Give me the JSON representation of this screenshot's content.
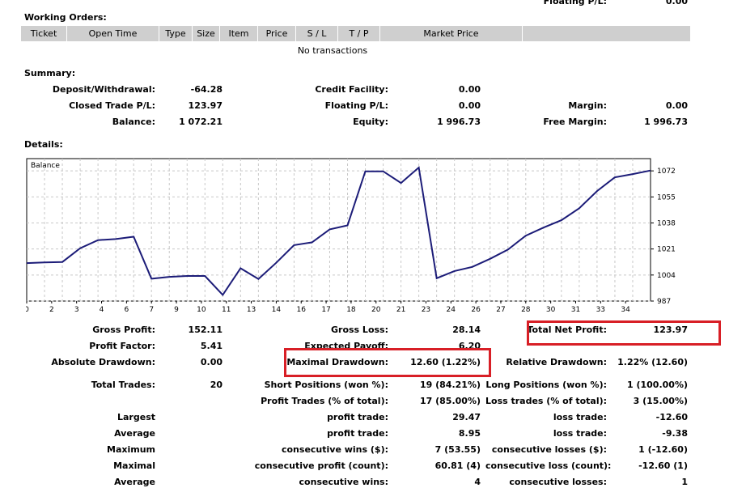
{
  "top_right": {
    "label": "Floating P/L:",
    "value": "0.00"
  },
  "working_orders": {
    "title": "Working Orders:",
    "columns": [
      "Ticket",
      "Open Time",
      "Type",
      "Size",
      "Item",
      "Price",
      "S / L",
      "T / P",
      "Market Price",
      ""
    ],
    "empty_text": "No transactions"
  },
  "summary": {
    "title": "Summary:",
    "deposit_label": "Deposit/Withdrawal:",
    "deposit_value": "-64.28",
    "credit_label": "Credit Facility:",
    "credit_value": "0.00",
    "closed_label": "Closed Trade P/L:",
    "closed_value": "123.97",
    "floating_label": "Floating P/L:",
    "floating_value": "0.00",
    "margin_label": "Margin:",
    "margin_value": "0.00",
    "balance_label": "Balance:",
    "balance_value": "1 072.21",
    "equity_label": "Equity:",
    "equity_value": "1 996.73",
    "free_margin_label": "Free Margin:",
    "free_margin_value": "1 996.73"
  },
  "details": {
    "title": "Details:",
    "gross_profit_label": "Gross Profit:",
    "gross_profit_value": "152.11",
    "gross_loss_label": "Gross Loss:",
    "gross_loss_value": "28.14",
    "total_net_label": "Total Net Profit:",
    "total_net_value": "123.97",
    "profit_factor_label": "Profit Factor:",
    "profit_factor_value": "5.41",
    "expected_payoff_label": "Expected Payoff:",
    "expected_payoff_value": "6.20",
    "abs_dd_label": "Absolute Drawdown:",
    "abs_dd_value": "0.00",
    "max_dd_label": "Maximal Drawdown:",
    "max_dd_value": "12.60 (1.22%)",
    "rel_dd_label": "Relative Drawdown:",
    "rel_dd_value": "1.22% (12.60)",
    "total_trades_label": "Total Trades:",
    "total_trades_value": "20",
    "short_label": "Short Positions (won %):",
    "short_value": "19 (84.21%)",
    "long_label": "Long Positions (won %):",
    "long_value": "1 (100.00%)",
    "profit_trades_label": "Profit Trades (% of total):",
    "profit_trades_value": "17 (85.00%)",
    "loss_trades_label": "Loss trades (% of total):",
    "loss_trades_value": "3 (15.00%)",
    "largest_label": "Largest",
    "largest_profit_label": "profit trade:",
    "largest_profit_value": "29.47",
    "largest_loss_label": "loss trade:",
    "largest_loss_value": "-12.60",
    "average_label": "Average",
    "average_profit_label": "profit trade:",
    "average_profit_value": "8.95",
    "average_loss_label": "loss trade:",
    "average_loss_value": "-9.38",
    "maximum_label": "Maximum",
    "max_cons_wins_label": "consecutive wins ($):",
    "max_cons_wins_value": "7 (53.55)",
    "max_cons_losses_label": "consecutive losses ($):",
    "max_cons_losses_value": "1 (-12.60)",
    "maximal_label": "Maximal",
    "maximal_profit_label": "consecutive profit (count):",
    "maximal_profit_value": "60.81 (4)",
    "maximal_loss_label": "consecutive loss (count):",
    "maximal_loss_value": "-12.60 (1)",
    "average2_label": "Average",
    "avg_cons_wins_label": "consecutive wins:",
    "avg_cons_wins_value": "4",
    "avg_cons_losses_label": "consecutive losses:",
    "avg_cons_losses_value": "1"
  },
  "colors": {
    "line": "#1c1c78",
    "highlight": "#d81f26",
    "header_bg": "#cfcfcf"
  },
  "chart_data": {
    "type": "line",
    "title": "Balance",
    "x_ticks": [
      0,
      2,
      3,
      4,
      6,
      7,
      9,
      10,
      11,
      13,
      14,
      16,
      17,
      18,
      20,
      21,
      23,
      24,
      26,
      27,
      28,
      30,
      31,
      33,
      34
    ],
    "y_ticks": [
      987,
      1004,
      1021,
      1038,
      1055,
      1072
    ],
    "ylim": [
      987,
      1080
    ],
    "grid": true,
    "series": [
      {
        "x": [
          0,
          1,
          2,
          3,
          4,
          5,
          6,
          7,
          8,
          9,
          10,
          11,
          12,
          13,
          14,
          15,
          16,
          17,
          18,
          19,
          20,
          21,
          22,
          23,
          24,
          25,
          26,
          27,
          28,
          29,
          30,
          31,
          32,
          33,
          34,
          35
        ],
        "values": [
          1011.8,
          1012.2,
          1012.5,
          1021.5,
          1026.8,
          1027.5,
          1029.0,
          1001.6,
          1002.8,
          1003.4,
          1003.4,
          991.0,
          1008.4,
          1001.4,
          1012.0,
          1023.5,
          1025.3,
          1033.8,
          1036.4,
          1071.7,
          1071.7,
          1064.1,
          1074.2,
          1001.9,
          1006.6,
          1009.3,
          1014.6,
          1020.6,
          1029.7,
          1035.0,
          1039.8,
          1047.6,
          1058.8,
          1067.8,
          1069.9,
          1072.21
        ]
      }
    ]
  }
}
